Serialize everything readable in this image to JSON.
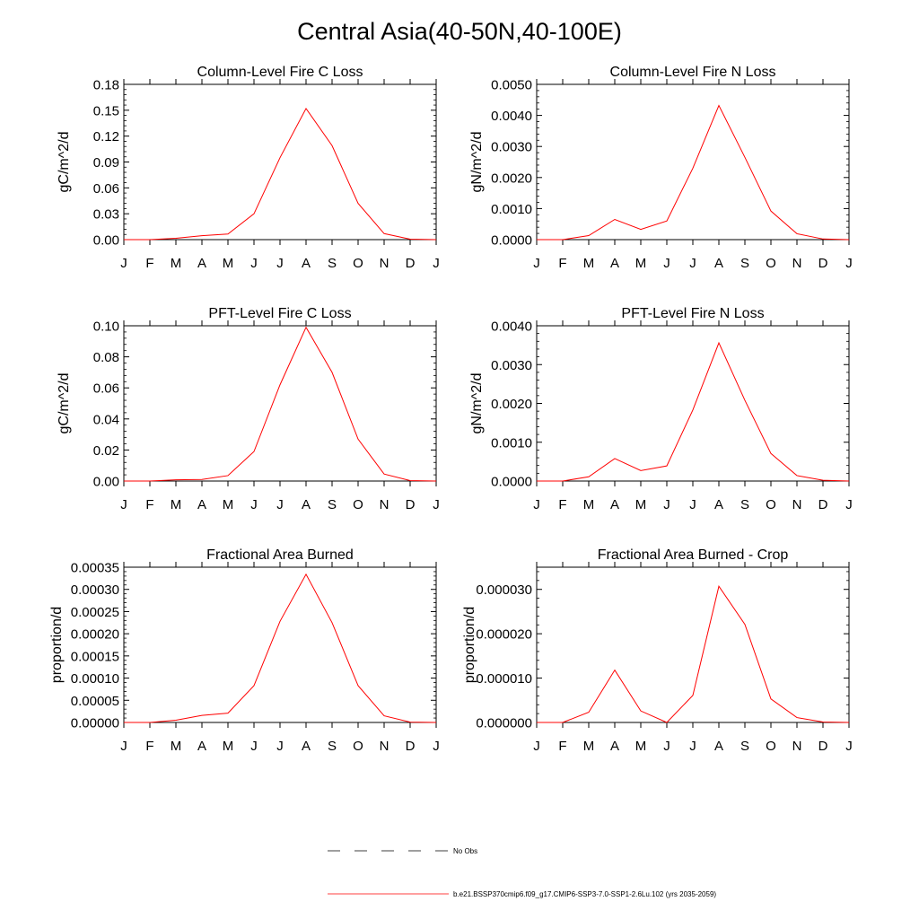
{
  "page_title": "Central Asia(40-50N,40-100E)",
  "chart_data": [
    {
      "type": "line",
      "title": "Column-Level Fire C Loss",
      "ylabel": "gC/m^2/d",
      "categories": [
        "J",
        "F",
        "M",
        "A",
        "M",
        "J",
        "J",
        "A",
        "S",
        "O",
        "N",
        "D",
        "J"
      ],
      "ylim": [
        0,
        0.18
      ],
      "yticks": [
        "0.00",
        "0.03",
        "0.06",
        "0.09",
        "0.12",
        "0.15",
        "0.18"
      ],
      "series": [
        {
          "values": [
            0,
            0,
            0.0015,
            0.0045,
            0.0065,
            0.03,
            0.095,
            0.152,
            0.109,
            0.042,
            0.007,
            0.0005,
            0
          ],
          "color": "#ff0000"
        }
      ]
    },
    {
      "type": "line",
      "title": "Column-Level Fire N Loss",
      "ylabel": "gN/m^2/d",
      "categories": [
        "J",
        "F",
        "M",
        "A",
        "M",
        "J",
        "J",
        "A",
        "S",
        "O",
        "N",
        "D",
        "J"
      ],
      "ylim": [
        0,
        0.005
      ],
      "yticks": [
        "0.0000",
        "0.0010",
        "0.0020",
        "0.0030",
        "0.0040",
        "0.0050"
      ],
      "series": [
        {
          "values": [
            0,
            0,
            0.00013,
            0.00065,
            0.00033,
            0.0006,
            0.0023,
            0.00432,
            0.00265,
            0.00092,
            0.00019,
            2e-05,
            0
          ],
          "color": "#ff0000"
        }
      ]
    },
    {
      "type": "line",
      "title": "PFT-Level Fire C Loss",
      "ylabel": "gC/m^2/d",
      "categories": [
        "J",
        "F",
        "M",
        "A",
        "M",
        "J",
        "J",
        "A",
        "S",
        "O",
        "N",
        "D",
        "J"
      ],
      "ylim": [
        0,
        0.1
      ],
      "yticks": [
        "0.00",
        "0.02",
        "0.04",
        "0.06",
        "0.08",
        "0.10"
      ],
      "series": [
        {
          "values": [
            0,
            0,
            0.0008,
            0.001,
            0.0035,
            0.019,
            0.062,
            0.099,
            0.07,
            0.027,
            0.0045,
            0.0003,
            0
          ],
          "color": "#ff0000"
        }
      ]
    },
    {
      "type": "line",
      "title": "PFT-Level Fire N Loss",
      "ylabel": "gN/m^2/d",
      "categories": [
        "J",
        "F",
        "M",
        "A",
        "M",
        "J",
        "J",
        "A",
        "S",
        "O",
        "N",
        "D",
        "J"
      ],
      "ylim": [
        0,
        0.004
      ],
      "yticks": [
        "0.0000",
        "0.0010",
        "0.0020",
        "0.0030",
        "0.0040"
      ],
      "series": [
        {
          "values": [
            0,
            0,
            0.00011,
            0.00058,
            0.00027,
            0.00039,
            0.00183,
            0.00356,
            0.00208,
            0.00071,
            0.00014,
            2e-05,
            0
          ],
          "color": "#ff0000"
        }
      ]
    },
    {
      "type": "line",
      "title": "Fractional Area Burned",
      "ylabel": "proportion/d",
      "categories": [
        "J",
        "F",
        "M",
        "A",
        "M",
        "J",
        "J",
        "A",
        "S",
        "O",
        "N",
        "D",
        "J"
      ],
      "ylim": [
        0,
        0.00035
      ],
      "yticks": [
        "0.00000",
        "0.00005",
        "0.00010",
        "0.00015",
        "0.00020",
        "0.00025",
        "0.00030",
        "0.00035"
      ],
      "series": [
        {
          "values": [
            0,
            0,
            5e-06,
            1.6e-05,
            2.1e-05,
            8.3e-05,
            0.000228,
            0.000334,
            0.000225,
            8.3e-05,
            1.5e-05,
            8e-07,
            0
          ],
          "color": "#ff0000"
        }
      ]
    },
    {
      "type": "line",
      "title": "Fractional Area Burned - Crop",
      "ylabel": "proportion/d",
      "categories": [
        "J",
        "F",
        "M",
        "A",
        "M",
        "J",
        "J",
        "A",
        "S",
        "O",
        "N",
        "D",
        "J"
      ],
      "ylim": [
        0,
        3.5e-05
      ],
      "yticks": [
        "0.000000",
        "0.000010",
        "0.000020",
        "0.000030"
      ],
      "series": [
        {
          "values": [
            0,
            0,
            2.3e-06,
            1.18e-05,
            2.6e-06,
            0,
            6.1e-06,
            3.07e-05,
            2.21e-05,
            5.3e-06,
            1.1e-06,
            1e-07,
            0
          ],
          "color": "#ff0000"
        }
      ]
    }
  ],
  "legend": [
    {
      "label": "No Obs",
      "color": "#000000",
      "style": "dashed"
    },
    {
      "label": "b.e21.BSSP370cmip6.f09_g17.CMIP6-SSP3-7.0-SSP1-2.6Lu.102 (yrs 2035-2059)",
      "color": "#ff0000",
      "style": "solid"
    }
  ]
}
